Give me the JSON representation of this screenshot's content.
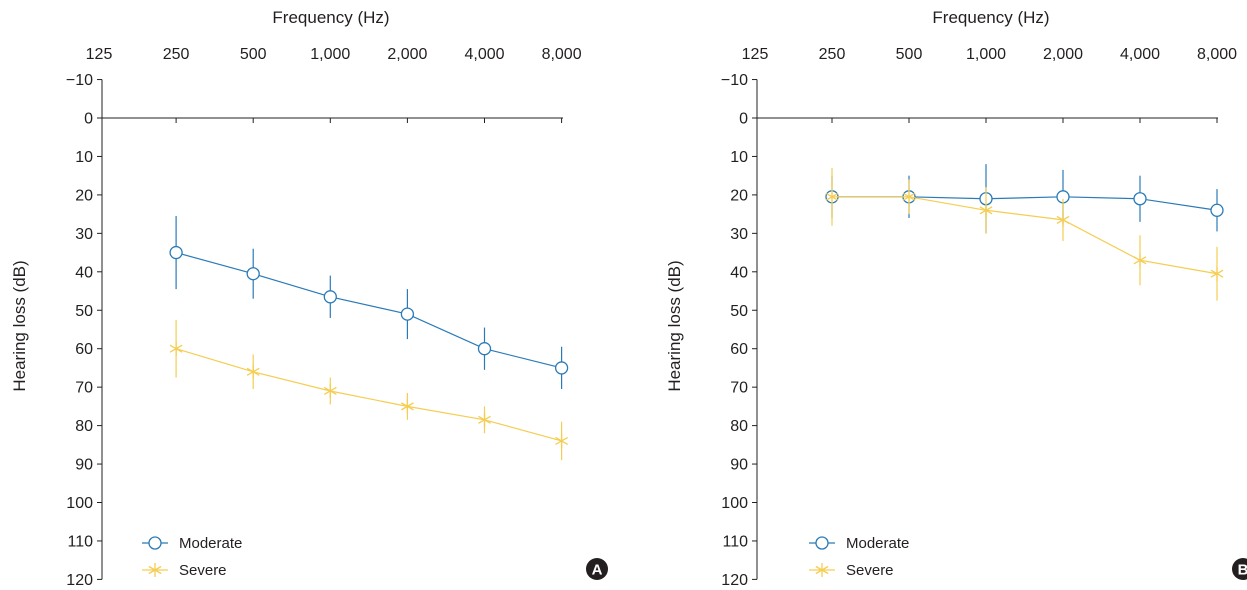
{
  "chart_data": [
    {
      "type": "line",
      "panel_label": "A",
      "xlabel": "Frequency (Hz)",
      "ylabel": "Hearing loss (dB)",
      "x_ticks": [
        "125",
        "250",
        "500",
        "1,000",
        "2,000",
        "4,000",
        "8,000"
      ],
      "x_scale": "log2",
      "y_ticks": [
        "−10",
        "0",
        "10",
        "20",
        "30",
        "40",
        "50",
        "60",
        "70",
        "80",
        "90",
        "100",
        "110",
        "120"
      ],
      "ylim": [
        -10,
        120
      ],
      "y_inverted": true,
      "legend_position": "bottom-left",
      "series": [
        {
          "name": "Moderate",
          "marker": "circle",
          "color": "#2a7ab8",
          "x": [
            250,
            500,
            1000,
            2000,
            4000,
            8000
          ],
          "y": [
            35,
            40.5,
            46.5,
            51,
            60,
            65
          ],
          "err": [
            9.5,
            6.5,
            5.5,
            6.5,
            5.5,
            5.5
          ]
        },
        {
          "name": "Severe",
          "marker": "asterisk",
          "color": "#f5cd52",
          "x": [
            250,
            500,
            1000,
            2000,
            4000,
            8000
          ],
          "y": [
            60,
            66,
            71,
            75,
            78.5,
            84
          ],
          "err": [
            7.5,
            4.5,
            3.5,
            3.5,
            3.5,
            5
          ]
        }
      ]
    },
    {
      "type": "line",
      "panel_label": "B",
      "xlabel": "Frequency (Hz)",
      "ylabel": "Hearing loss (dB)",
      "x_ticks": [
        "125",
        "250",
        "500",
        "1,000",
        "2,000",
        "4,000",
        "8,000"
      ],
      "x_scale": "log2",
      "y_ticks": [
        "−10",
        "0",
        "10",
        "20",
        "30",
        "40",
        "50",
        "60",
        "70",
        "80",
        "90",
        "100",
        "110",
        "120"
      ],
      "ylim": [
        -10,
        120
      ],
      "y_inverted": true,
      "legend_position": "bottom-left",
      "series": [
        {
          "name": "Moderate",
          "marker": "circle",
          "color": "#2a7ab8",
          "x": [
            250,
            500,
            1000,
            2000,
            4000,
            8000
          ],
          "y": [
            20.5,
            20.5,
            21,
            20.5,
            21,
            24
          ],
          "err": [
            5.5,
            5.5,
            9,
            7,
            6,
            5.5
          ]
        },
        {
          "name": "Severe",
          "marker": "asterisk",
          "color": "#f5cd52",
          "x": [
            250,
            500,
            1000,
            2000,
            4000,
            8000
          ],
          "y": [
            20.5,
            20.5,
            24,
            26.5,
            37,
            40.5
          ],
          "err": [
            7.5,
            4.5,
            6,
            5.5,
            6.5,
            7
          ]
        }
      ]
    }
  ]
}
